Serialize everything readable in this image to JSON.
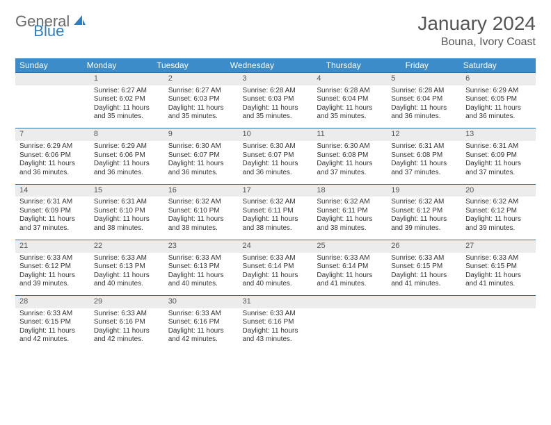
{
  "brand": {
    "general": "General",
    "blue": "Blue"
  },
  "title": "January 2024",
  "location": "Bouna, Ivory Coast",
  "colors": {
    "header_bg": "#3b8cc9",
    "header_text": "#ffffff",
    "row_border": "#2d6ea8",
    "daynum_bg": "#ececec",
    "brand_gray": "#6a6a6a",
    "brand_blue": "#2d7fc1"
  },
  "day_names": [
    "Sunday",
    "Monday",
    "Tuesday",
    "Wednesday",
    "Thursday",
    "Friday",
    "Saturday"
  ],
  "weeks": [
    {
      "nums": [
        "",
        "1",
        "2",
        "3",
        "4",
        "5",
        "6"
      ],
      "cells": [
        {},
        {
          "sunrise": "Sunrise: 6:27 AM",
          "sunset": "Sunset: 6:02 PM",
          "day1": "Daylight: 11 hours",
          "day2": "and 35 minutes."
        },
        {
          "sunrise": "Sunrise: 6:27 AM",
          "sunset": "Sunset: 6:03 PM",
          "day1": "Daylight: 11 hours",
          "day2": "and 35 minutes."
        },
        {
          "sunrise": "Sunrise: 6:28 AM",
          "sunset": "Sunset: 6:03 PM",
          "day1": "Daylight: 11 hours",
          "day2": "and 35 minutes."
        },
        {
          "sunrise": "Sunrise: 6:28 AM",
          "sunset": "Sunset: 6:04 PM",
          "day1": "Daylight: 11 hours",
          "day2": "and 35 minutes."
        },
        {
          "sunrise": "Sunrise: 6:28 AM",
          "sunset": "Sunset: 6:04 PM",
          "day1": "Daylight: 11 hours",
          "day2": "and 36 minutes."
        },
        {
          "sunrise": "Sunrise: 6:29 AM",
          "sunset": "Sunset: 6:05 PM",
          "day1": "Daylight: 11 hours",
          "day2": "and 36 minutes."
        }
      ]
    },
    {
      "nums": [
        "7",
        "8",
        "9",
        "10",
        "11",
        "12",
        "13"
      ],
      "cells": [
        {
          "sunrise": "Sunrise: 6:29 AM",
          "sunset": "Sunset: 6:06 PM",
          "day1": "Daylight: 11 hours",
          "day2": "and 36 minutes."
        },
        {
          "sunrise": "Sunrise: 6:29 AM",
          "sunset": "Sunset: 6:06 PM",
          "day1": "Daylight: 11 hours",
          "day2": "and 36 minutes."
        },
        {
          "sunrise": "Sunrise: 6:30 AM",
          "sunset": "Sunset: 6:07 PM",
          "day1": "Daylight: 11 hours",
          "day2": "and 36 minutes."
        },
        {
          "sunrise": "Sunrise: 6:30 AM",
          "sunset": "Sunset: 6:07 PM",
          "day1": "Daylight: 11 hours",
          "day2": "and 36 minutes."
        },
        {
          "sunrise": "Sunrise: 6:30 AM",
          "sunset": "Sunset: 6:08 PM",
          "day1": "Daylight: 11 hours",
          "day2": "and 37 minutes."
        },
        {
          "sunrise": "Sunrise: 6:31 AM",
          "sunset": "Sunset: 6:08 PM",
          "day1": "Daylight: 11 hours",
          "day2": "and 37 minutes."
        },
        {
          "sunrise": "Sunrise: 6:31 AM",
          "sunset": "Sunset: 6:09 PM",
          "day1": "Daylight: 11 hours",
          "day2": "and 37 minutes."
        }
      ]
    },
    {
      "nums": [
        "14",
        "15",
        "16",
        "17",
        "18",
        "19",
        "20"
      ],
      "cells": [
        {
          "sunrise": "Sunrise: 6:31 AM",
          "sunset": "Sunset: 6:09 PM",
          "day1": "Daylight: 11 hours",
          "day2": "and 37 minutes."
        },
        {
          "sunrise": "Sunrise: 6:31 AM",
          "sunset": "Sunset: 6:10 PM",
          "day1": "Daylight: 11 hours",
          "day2": "and 38 minutes."
        },
        {
          "sunrise": "Sunrise: 6:32 AM",
          "sunset": "Sunset: 6:10 PM",
          "day1": "Daylight: 11 hours",
          "day2": "and 38 minutes."
        },
        {
          "sunrise": "Sunrise: 6:32 AM",
          "sunset": "Sunset: 6:11 PM",
          "day1": "Daylight: 11 hours",
          "day2": "and 38 minutes."
        },
        {
          "sunrise": "Sunrise: 6:32 AM",
          "sunset": "Sunset: 6:11 PM",
          "day1": "Daylight: 11 hours",
          "day2": "and 38 minutes."
        },
        {
          "sunrise": "Sunrise: 6:32 AM",
          "sunset": "Sunset: 6:12 PM",
          "day1": "Daylight: 11 hours",
          "day2": "and 39 minutes."
        },
        {
          "sunrise": "Sunrise: 6:32 AM",
          "sunset": "Sunset: 6:12 PM",
          "day1": "Daylight: 11 hours",
          "day2": "and 39 minutes."
        }
      ]
    },
    {
      "nums": [
        "21",
        "22",
        "23",
        "24",
        "25",
        "26",
        "27"
      ],
      "cells": [
        {
          "sunrise": "Sunrise: 6:33 AM",
          "sunset": "Sunset: 6:12 PM",
          "day1": "Daylight: 11 hours",
          "day2": "and 39 minutes."
        },
        {
          "sunrise": "Sunrise: 6:33 AM",
          "sunset": "Sunset: 6:13 PM",
          "day1": "Daylight: 11 hours",
          "day2": "and 40 minutes."
        },
        {
          "sunrise": "Sunrise: 6:33 AM",
          "sunset": "Sunset: 6:13 PM",
          "day1": "Daylight: 11 hours",
          "day2": "and 40 minutes."
        },
        {
          "sunrise": "Sunrise: 6:33 AM",
          "sunset": "Sunset: 6:14 PM",
          "day1": "Daylight: 11 hours",
          "day2": "and 40 minutes."
        },
        {
          "sunrise": "Sunrise: 6:33 AM",
          "sunset": "Sunset: 6:14 PM",
          "day1": "Daylight: 11 hours",
          "day2": "and 41 minutes."
        },
        {
          "sunrise": "Sunrise: 6:33 AM",
          "sunset": "Sunset: 6:15 PM",
          "day1": "Daylight: 11 hours",
          "day2": "and 41 minutes."
        },
        {
          "sunrise": "Sunrise: 6:33 AM",
          "sunset": "Sunset: 6:15 PM",
          "day1": "Daylight: 11 hours",
          "day2": "and 41 minutes."
        }
      ]
    },
    {
      "nums": [
        "28",
        "29",
        "30",
        "31",
        "",
        "",
        ""
      ],
      "cells": [
        {
          "sunrise": "Sunrise: 6:33 AM",
          "sunset": "Sunset: 6:15 PM",
          "day1": "Daylight: 11 hours",
          "day2": "and 42 minutes."
        },
        {
          "sunrise": "Sunrise: 6:33 AM",
          "sunset": "Sunset: 6:16 PM",
          "day1": "Daylight: 11 hours",
          "day2": "and 42 minutes."
        },
        {
          "sunrise": "Sunrise: 6:33 AM",
          "sunset": "Sunset: 6:16 PM",
          "day1": "Daylight: 11 hours",
          "day2": "and 42 minutes."
        },
        {
          "sunrise": "Sunrise: 6:33 AM",
          "sunset": "Sunset: 6:16 PM",
          "day1": "Daylight: 11 hours",
          "day2": "and 43 minutes."
        },
        {},
        {},
        {}
      ]
    }
  ]
}
